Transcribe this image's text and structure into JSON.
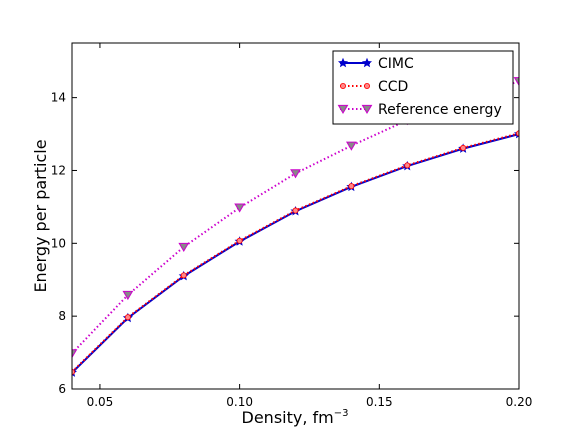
{
  "chart_data": {
    "type": "line",
    "title": "",
    "xlabel": "Density, fm",
    "xlabel_sup": "−3",
    "ylabel": "Energy per particle",
    "xlim": [
      0.04,
      0.2
    ],
    "ylim": [
      6,
      15.5
    ],
    "xticks": [
      0.05,
      0.1,
      0.15,
      0.2
    ],
    "xtick_labels": [
      "0.05",
      "0.10",
      "0.15",
      "0.20"
    ],
    "yticks": [
      6,
      8,
      10,
      12,
      14
    ],
    "ytick_labels": [
      "6",
      "8",
      "10",
      "12",
      "14"
    ],
    "grid": false,
    "legend_position": "top-right",
    "series": [
      {
        "name": "CIMC",
        "color": "#0000cc",
        "line_style": "solid",
        "marker": "star",
        "x": [
          0.04,
          0.06,
          0.08,
          0.1,
          0.12,
          0.14,
          0.16,
          0.18,
          0.2
        ],
        "y": [
          6.45,
          7.95,
          9.1,
          10.05,
          10.88,
          11.55,
          12.12,
          12.6,
          13.0
        ]
      },
      {
        "name": "CCD",
        "color": "#ff0000",
        "line_style": "dotted",
        "marker": "circle",
        "x": [
          0.04,
          0.06,
          0.08,
          0.1,
          0.12,
          0.14,
          0.16,
          0.18,
          0.2
        ],
        "y": [
          6.47,
          7.97,
          9.12,
          10.07,
          10.9,
          11.57,
          12.14,
          12.62,
          13.02
        ]
      },
      {
        "name": "Reference energy",
        "color": "#cc00cc",
        "line_style": "dotted",
        "marker": "triangle-down",
        "x": [
          0.04,
          0.06,
          0.08,
          0.1,
          0.12,
          0.14,
          0.16,
          0.18,
          0.2
        ],
        "y": [
          6.98,
          8.58,
          9.9,
          10.98,
          11.92,
          12.68,
          13.38,
          13.95,
          14.45
        ]
      }
    ]
  }
}
